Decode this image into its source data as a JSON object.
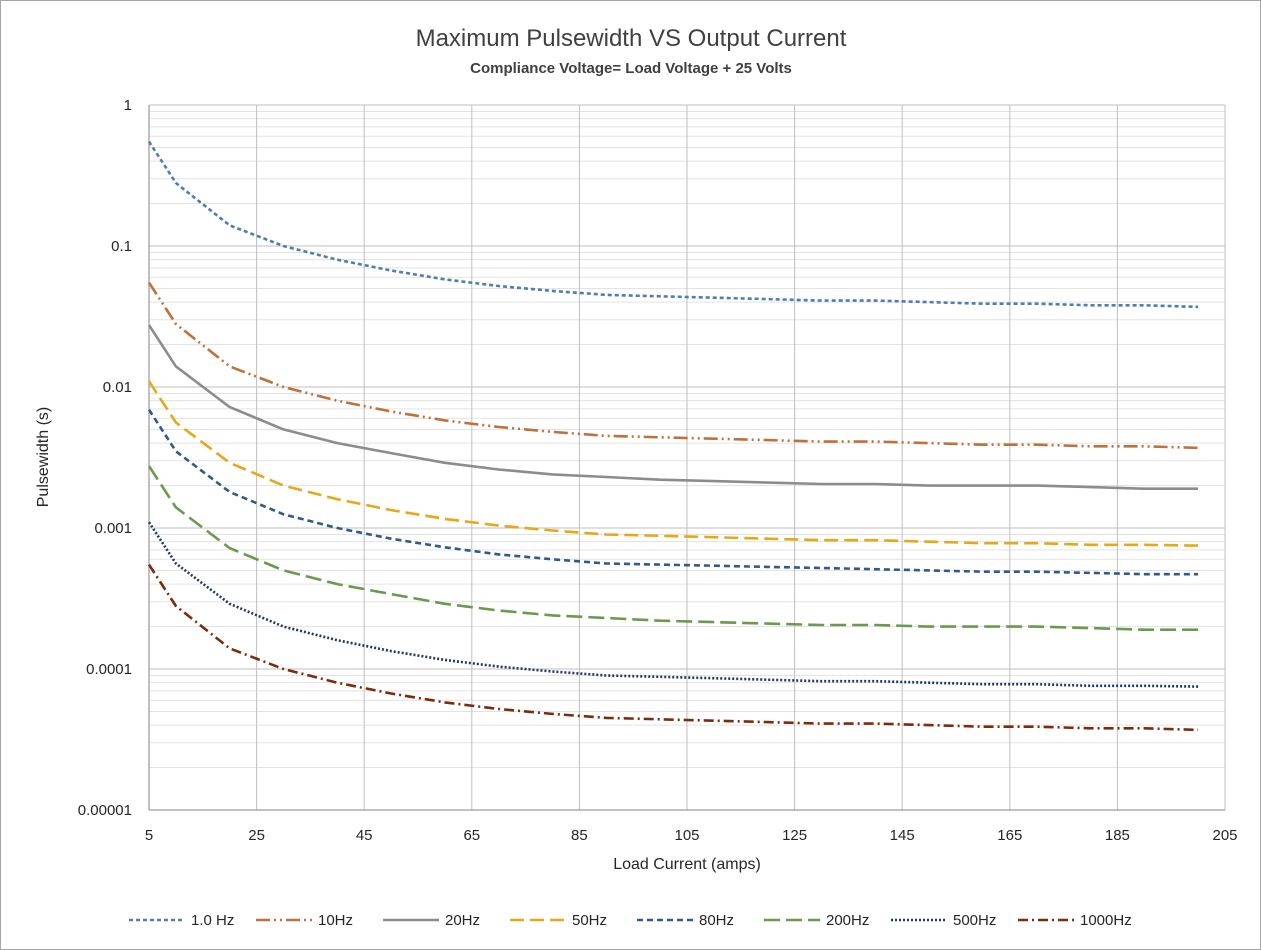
{
  "chart_data": {
    "type": "line",
    "title": "Maximum Pulsewidth VS Output Current",
    "subtitle": "Compliance Voltage= Load Voltage + 25 Volts",
    "xlabel": "Load Current (amps)",
    "ylabel": "Pulsewidth (s)",
    "xlim": [
      5,
      205
    ],
    "ylim": [
      1e-05,
      1
    ],
    "yscale": "log",
    "x_ticks": [
      5,
      25,
      45,
      65,
      85,
      105,
      125,
      145,
      165,
      185,
      205
    ],
    "x_tick_labels": [
      "5",
      "25",
      "45",
      "65",
      "85",
      "105",
      "125",
      "145",
      "165",
      "185",
      "205"
    ],
    "y_ticks": [
      1,
      0.1,
      0.01,
      0.001,
      0.0001,
      1e-05
    ],
    "y_tick_labels": [
      "1",
      "0.1",
      "0.01",
      "0.001",
      "0.0001",
      "0.00001"
    ],
    "grid": true,
    "legend_position": "bottom",
    "x": [
      5,
      10,
      20,
      30,
      40,
      50,
      60,
      70,
      80,
      90,
      100,
      110,
      120,
      130,
      140,
      150,
      160,
      170,
      180,
      190,
      200
    ],
    "series": [
      {
        "name": "1.0 Hz",
        "color": "#4e7cb5",
        "dash": "4,3",
        "values": [
          0.55,
          0.28,
          0.14,
          0.1,
          0.08,
          0.067,
          0.058,
          0.052,
          0.048,
          0.045,
          0.044,
          0.043,
          0.042,
          0.041,
          0.041,
          0.04,
          0.039,
          0.039,
          0.038,
          0.038,
          0.037
        ]
      },
      {
        "name": "10Hz",
        "color": "#c0703a",
        "dash": "14,4,2,4,2,4",
        "values": [
          0.055,
          0.028,
          0.014,
          0.01,
          0.008,
          0.0067,
          0.0058,
          0.0052,
          0.0048,
          0.0045,
          0.0044,
          0.0043,
          0.0042,
          0.0041,
          0.0041,
          0.004,
          0.0039,
          0.0039,
          0.0038,
          0.0038,
          0.0037
        ]
      },
      {
        "name": "20Hz",
        "color": "#8c8c8c",
        "dash": "",
        "values": [
          0.0275,
          0.014,
          0.0072,
          0.005,
          0.004,
          0.0034,
          0.0029,
          0.0026,
          0.0024,
          0.0023,
          0.0022,
          0.00215,
          0.0021,
          0.00205,
          0.00205,
          0.002,
          0.002,
          0.002,
          0.00195,
          0.0019,
          0.0019
        ]
      },
      {
        "name": "50Hz",
        "color": "#e6a817",
        "dash": "14,6",
        "values": [
          0.011,
          0.0056,
          0.0029,
          0.002,
          0.0016,
          0.00134,
          0.00116,
          0.00104,
          0.00096,
          0.0009,
          0.00088,
          0.00086,
          0.00084,
          0.00082,
          0.00082,
          0.0008,
          0.00078,
          0.00078,
          0.00076,
          0.00076,
          0.00075
        ]
      },
      {
        "name": "80Hz",
        "color": "#2e5a8c",
        "dash": "6,4",
        "values": [
          0.0069,
          0.0035,
          0.0018,
          0.00125,
          0.001,
          0.00084,
          0.00073,
          0.00065,
          0.0006,
          0.00056,
          0.00055,
          0.00054,
          0.00053,
          0.00052,
          0.00051,
          0.0005,
          0.00049,
          0.00049,
          0.00048,
          0.00047,
          0.00047
        ]
      },
      {
        "name": "200Hz",
        "color": "#6a9a4e",
        "dash": "16,6",
        "values": [
          0.00275,
          0.0014,
          0.00072,
          0.0005,
          0.0004,
          0.00034,
          0.00029,
          0.00026,
          0.00024,
          0.00023,
          0.00022,
          0.000215,
          0.00021,
          0.000205,
          0.000205,
          0.0002,
          0.0002,
          0.0002,
          0.000195,
          0.00019,
          0.00019
        ]
      },
      {
        "name": "500Hz",
        "color": "#1f3864",
        "dash": "2,2",
        "values": [
          0.0011,
          0.00056,
          0.00029,
          0.0002,
          0.00016,
          0.000134,
          0.000116,
          0.000104,
          9.6e-05,
          9e-05,
          8.8e-05,
          8.6e-05,
          8.4e-05,
          8.2e-05,
          8.2e-05,
          8e-05,
          7.8e-05,
          7.8e-05,
          7.6e-05,
          7.6e-05,
          7.5e-05
        ]
      },
      {
        "name": "1000Hz",
        "color": "#7b2c0c",
        "dash": "10,4,2,4",
        "values": [
          0.00055,
          0.00028,
          0.00014,
          0.0001,
          8e-05,
          6.7e-05,
          5.8e-05,
          5.2e-05,
          4.8e-05,
          4.5e-05,
          4.4e-05,
          4.3e-05,
          4.2e-05,
          4.1e-05,
          4.1e-05,
          4e-05,
          3.9e-05,
          3.9e-05,
          3.8e-05,
          3.8e-05,
          3.7e-05
        ]
      }
    ]
  }
}
